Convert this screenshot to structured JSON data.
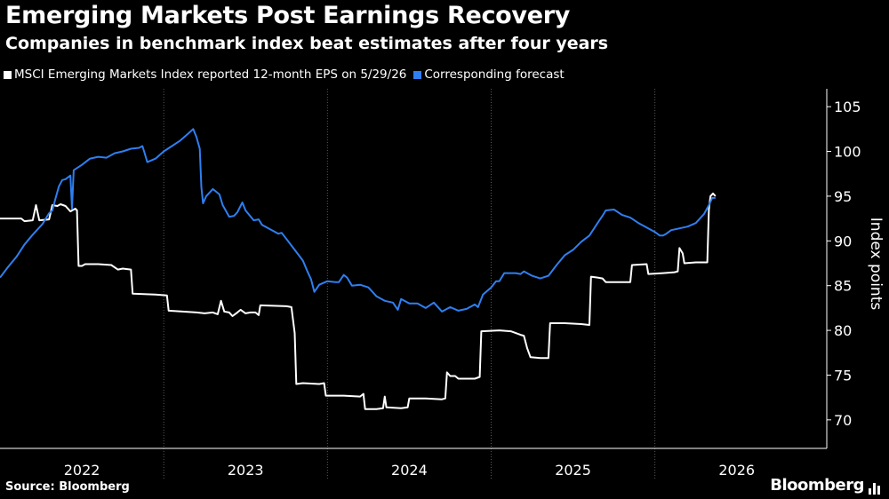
{
  "title": "Emerging Markets Post Earnings Recovery",
  "subtitle": "Companies in benchmark index beat estimates after four years",
  "source": "Source: Bloomberg",
  "brand": "Bloomberg",
  "colors": {
    "background": "#000000",
    "series_white": "#ffffff",
    "series_blue": "#2f7ff0",
    "grid": "#555555"
  },
  "chart_data": {
    "type": "line",
    "title": "Emerging Markets Post Earnings Recovery",
    "subtitle": "Companies in benchmark index beat estimates after four years",
    "xlabel": "",
    "ylabel": "Index points",
    "ylim": [
      68,
      107
    ],
    "xlim": [
      2021.5,
      2026.55
    ],
    "yticks": [
      70,
      75,
      80,
      85,
      90,
      95,
      100,
      105
    ],
    "ytick_labels": [
      "70",
      "75",
      "80",
      "85",
      "90",
      "95",
      "100",
      "105"
    ],
    "xtick_labels": [
      {
        "label": "2022",
        "x": 2022.0
      },
      {
        "label": "2023",
        "x": 2023.0
      },
      {
        "label": "2024",
        "x": 2024.0
      },
      {
        "label": "2025",
        "x": 2025.0
      },
      {
        "label": "2026",
        "x": 2026.0
      }
    ],
    "xdividers": [
      2022.5,
      2023.5,
      2024.5,
      2025.5
    ],
    "grid": "vertical dotted at year boundaries",
    "legend_position": "top-left",
    "series": [
      {
        "name": "MSCI Emerging Markets Index reported 12-month EPS on 5/29/26",
        "color": "#ffffff",
        "points": [
          [
            2021.5,
            92.5
          ],
          [
            2021.63,
            92.5
          ],
          [
            2021.65,
            92.2
          ],
          [
            2021.7,
            92.3
          ],
          [
            2021.72,
            94.0
          ],
          [
            2021.74,
            92.3
          ],
          [
            2021.8,
            92.4
          ],
          [
            2021.82,
            94.0
          ],
          [
            2021.85,
            93.9
          ],
          [
            2021.87,
            94.1
          ],
          [
            2021.9,
            93.9
          ],
          [
            2021.93,
            93.3
          ],
          [
            2021.96,
            93.6
          ],
          [
            2021.97,
            93.4
          ],
          [
            2021.98,
            87.2
          ],
          [
            2022.0,
            87.2
          ],
          [
            2022.02,
            87.4
          ],
          [
            2022.1,
            87.4
          ],
          [
            2022.18,
            87.3
          ],
          [
            2022.22,
            86.8
          ],
          [
            2022.25,
            86.9
          ],
          [
            2022.3,
            86.8
          ],
          [
            2022.31,
            84.1
          ],
          [
            2022.45,
            84.0
          ],
          [
            2022.52,
            83.9
          ],
          [
            2022.53,
            82.2
          ],
          [
            2022.7,
            82.0
          ],
          [
            2022.75,
            81.9
          ],
          [
            2022.8,
            82.0
          ],
          [
            2022.83,
            81.8
          ],
          [
            2022.85,
            83.3
          ],
          [
            2022.87,
            82.1
          ],
          [
            2022.9,
            82.0
          ],
          [
            2022.92,
            81.6
          ],
          [
            2022.95,
            82.0
          ],
          [
            2022.97,
            82.3
          ],
          [
            2023.0,
            81.9
          ],
          [
            2023.03,
            82.0
          ],
          [
            2023.06,
            82.0
          ],
          [
            2023.08,
            81.7
          ],
          [
            2023.09,
            82.8
          ],
          [
            2023.25,
            82.7
          ],
          [
            2023.28,
            82.6
          ],
          [
            2023.3,
            79.7
          ],
          [
            2023.31,
            74.0
          ],
          [
            2023.35,
            74.1
          ],
          [
            2023.45,
            74.0
          ],
          [
            2023.48,
            74.1
          ],
          [
            2023.49,
            72.7
          ],
          [
            2023.6,
            72.7
          ],
          [
            2023.7,
            72.6
          ],
          [
            2023.72,
            72.9
          ],
          [
            2023.73,
            71.2
          ],
          [
            2023.8,
            71.2
          ],
          [
            2023.84,
            71.3
          ],
          [
            2023.85,
            72.6
          ],
          [
            2023.86,
            71.4
          ],
          [
            2023.95,
            71.3
          ],
          [
            2023.99,
            71.4
          ],
          [
            2024.0,
            72.4
          ],
          [
            2024.1,
            72.4
          ],
          [
            2024.2,
            72.3
          ],
          [
            2024.22,
            72.4
          ],
          [
            2024.23,
            75.3
          ],
          [
            2024.25,
            74.9
          ],
          [
            2024.28,
            74.9
          ],
          [
            2024.3,
            74.6
          ],
          [
            2024.4,
            74.6
          ],
          [
            2024.43,
            74.8
          ],
          [
            2024.44,
            79.9
          ],
          [
            2024.55,
            80.0
          ],
          [
            2024.62,
            79.9
          ],
          [
            2024.68,
            79.5
          ],
          [
            2024.7,
            79.4
          ],
          [
            2024.72,
            78.0
          ],
          [
            2024.74,
            77.0
          ],
          [
            2024.8,
            76.9
          ],
          [
            2024.85,
            76.9
          ],
          [
            2024.86,
            80.8
          ],
          [
            2024.95,
            80.8
          ],
          [
            2025.05,
            80.7
          ],
          [
            2025.1,
            80.6
          ],
          [
            2025.11,
            86.0
          ],
          [
            2025.15,
            85.9
          ],
          [
            2025.18,
            85.8
          ],
          [
            2025.2,
            85.4
          ],
          [
            2025.3,
            85.4
          ],
          [
            2025.35,
            85.4
          ],
          [
            2025.36,
            87.3
          ],
          [
            2025.45,
            87.4
          ],
          [
            2025.46,
            86.3
          ],
          [
            2025.55,
            86.4
          ],
          [
            2025.62,
            86.5
          ],
          [
            2025.64,
            86.6
          ],
          [
            2025.65,
            89.2
          ],
          [
            2025.67,
            88.6
          ],
          [
            2025.68,
            87.5
          ],
          [
            2025.75,
            87.6
          ],
          [
            2025.82,
            87.6
          ],
          [
            2025.83,
            93.5
          ],
          [
            2025.84,
            95.0
          ],
          [
            2025.855,
            95.3
          ],
          [
            2025.87,
            95.0
          ]
        ]
      },
      {
        "name": "Corresponding forecast",
        "color": "#2f7ff0",
        "points": [
          [
            2021.5,
            85.9
          ],
          [
            2021.55,
            87.1
          ],
          [
            2021.6,
            88.2
          ],
          [
            2021.65,
            89.6
          ],
          [
            2021.7,
            90.7
          ],
          [
            2021.73,
            91.3
          ],
          [
            2021.76,
            91.9
          ],
          [
            2021.8,
            93.1
          ],
          [
            2021.82,
            93.4
          ],
          [
            2021.84,
            94.8
          ],
          [
            2021.86,
            96.1
          ],
          [
            2021.88,
            96.8
          ],
          [
            2021.9,
            96.9
          ],
          [
            2021.93,
            97.3
          ],
          [
            2021.94,
            93.6
          ],
          [
            2021.95,
            97.9
          ],
          [
            2022.0,
            98.5
          ],
          [
            2022.05,
            99.2
          ],
          [
            2022.1,
            99.4
          ],
          [
            2022.15,
            99.3
          ],
          [
            2022.2,
            99.8
          ],
          [
            2022.25,
            100.0
          ],
          [
            2022.3,
            100.3
          ],
          [
            2022.35,
            100.4
          ],
          [
            2022.37,
            100.6
          ],
          [
            2022.38,
            100.0
          ],
          [
            2022.4,
            98.8
          ],
          [
            2022.45,
            99.2
          ],
          [
            2022.5,
            100.0
          ],
          [
            2022.55,
            100.6
          ],
          [
            2022.6,
            101.2
          ],
          [
            2022.65,
            102.0
          ],
          [
            2022.68,
            102.5
          ],
          [
            2022.7,
            101.6
          ],
          [
            2022.72,
            100.3
          ],
          [
            2022.73,
            96.0
          ],
          [
            2022.74,
            94.2
          ],
          [
            2022.76,
            95.0
          ],
          [
            2022.8,
            95.8
          ],
          [
            2022.84,
            95.2
          ],
          [
            2022.86,
            94.0
          ],
          [
            2022.9,
            92.7
          ],
          [
            2022.93,
            92.8
          ],
          [
            2022.95,
            93.2
          ],
          [
            2022.98,
            94.3
          ],
          [
            2023.0,
            93.4
          ],
          [
            2023.05,
            92.3
          ],
          [
            2023.08,
            92.4
          ],
          [
            2023.1,
            91.8
          ],
          [
            2023.15,
            91.3
          ],
          [
            2023.2,
            90.8
          ],
          [
            2023.22,
            90.9
          ],
          [
            2023.25,
            90.2
          ],
          [
            2023.3,
            89.0
          ],
          [
            2023.35,
            87.8
          ],
          [
            2023.38,
            86.5
          ],
          [
            2023.4,
            85.7
          ],
          [
            2023.42,
            84.3
          ],
          [
            2023.45,
            85.1
          ],
          [
            2023.5,
            85.5
          ],
          [
            2023.55,
            85.4
          ],
          [
            2023.57,
            85.4
          ],
          [
            2023.6,
            86.2
          ],
          [
            2023.62,
            85.9
          ],
          [
            2023.65,
            85.0
          ],
          [
            2023.7,
            85.1
          ],
          [
            2023.75,
            84.8
          ],
          [
            2023.8,
            83.8
          ],
          [
            2023.85,
            83.3
          ],
          [
            2023.9,
            83.1
          ],
          [
            2023.93,
            82.3
          ],
          [
            2023.95,
            83.5
          ],
          [
            2024.0,
            83.0
          ],
          [
            2024.05,
            83.0
          ],
          [
            2024.1,
            82.5
          ],
          [
            2024.15,
            83.1
          ],
          [
            2024.2,
            82.1
          ],
          [
            2024.25,
            82.6
          ],
          [
            2024.3,
            82.2
          ],
          [
            2024.35,
            82.4
          ],
          [
            2024.4,
            82.9
          ],
          [
            2024.42,
            82.6
          ],
          [
            2024.45,
            84.0
          ],
          [
            2024.5,
            84.8
          ],
          [
            2024.53,
            85.5
          ],
          [
            2024.55,
            85.5
          ],
          [
            2024.58,
            86.4
          ],
          [
            2024.6,
            86.4
          ],
          [
            2024.65,
            86.4
          ],
          [
            2024.68,
            86.3
          ],
          [
            2024.7,
            86.6
          ],
          [
            2024.75,
            86.1
          ],
          [
            2024.8,
            85.8
          ],
          [
            2024.85,
            86.1
          ],
          [
            2024.9,
            87.3
          ],
          [
            2024.95,
            88.4
          ],
          [
            2025.0,
            89.0
          ],
          [
            2025.05,
            89.9
          ],
          [
            2025.1,
            90.6
          ],
          [
            2025.15,
            92.0
          ],
          [
            2025.18,
            92.8
          ],
          [
            2025.2,
            93.4
          ],
          [
            2025.25,
            93.5
          ],
          [
            2025.3,
            92.9
          ],
          [
            2025.35,
            92.6
          ],
          [
            2025.4,
            92.0
          ],
          [
            2025.45,
            91.5
          ],
          [
            2025.5,
            91.0
          ],
          [
            2025.53,
            90.6
          ],
          [
            2025.55,
            90.6
          ],
          [
            2025.57,
            90.8
          ],
          [
            2025.6,
            91.2
          ],
          [
            2025.65,
            91.4
          ],
          [
            2025.7,
            91.6
          ],
          [
            2025.75,
            92.0
          ],
          [
            2025.8,
            93.0
          ],
          [
            2025.83,
            94.0
          ],
          [
            2025.85,
            94.8
          ],
          [
            2025.87,
            94.8
          ]
        ]
      }
    ]
  }
}
